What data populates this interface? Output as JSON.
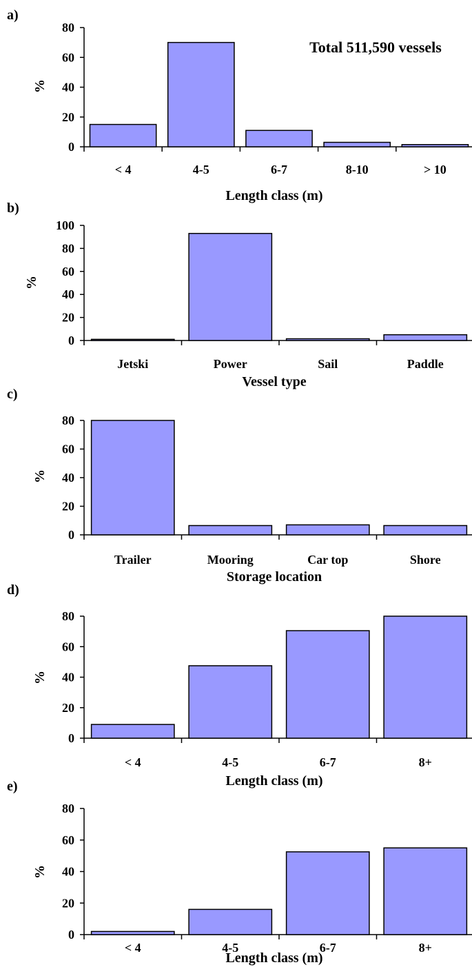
{
  "colors": {
    "bar": "#9999ff",
    "stroke": "#000000"
  },
  "chart_data": [
    {
      "type": "bar",
      "panel": "a)",
      "categories": [
        "< 4",
        "4-5",
        "6-7",
        "8-10",
        "> 10"
      ],
      "values": [
        15,
        70,
        11,
        3,
        1.5
      ],
      "xlabel": "Length class (m)",
      "ylabel": "%",
      "ylim": [
        0,
        80
      ],
      "yticks": [
        0,
        20,
        40,
        60,
        80
      ],
      "annotation": "Total 511,590 vessels"
    },
    {
      "type": "bar",
      "panel": "b)",
      "categories": [
        "Jetski",
        "Power",
        "Sail",
        "Paddle"
      ],
      "values": [
        1,
        93,
        1.5,
        5
      ],
      "xlabel": "Vessel type",
      "ylabel": "%",
      "ylim": [
        0,
        100
      ],
      "yticks": [
        0,
        20,
        40,
        60,
        80,
        100
      ]
    },
    {
      "type": "bar",
      "panel": "c)",
      "categories": [
        "Trailer",
        "Mooring",
        "Car top",
        "Shore"
      ],
      "values": [
        80,
        6.5,
        7,
        6.5
      ],
      "xlabel": "Storage location",
      "ylabel": "%",
      "ylim": [
        0,
        80
      ],
      "yticks": [
        0,
        20,
        40,
        60,
        80
      ]
    },
    {
      "type": "bar",
      "panel": "d)",
      "categories": [
        "< 4",
        "4-5",
        "6-7",
        "8+"
      ],
      "values": [
        9,
        47.5,
        70.5,
        80
      ],
      "xlabel": "Length class (m)",
      "ylabel": "%",
      "ylim": [
        0,
        80
      ],
      "yticks": [
        0,
        20,
        40,
        60,
        80
      ]
    },
    {
      "type": "bar",
      "panel": "e)",
      "categories": [
        "< 4",
        "4-5",
        "6-7",
        "8+"
      ],
      "values": [
        2,
        16,
        52.5,
        55
      ],
      "xlabel": "Length class (m)",
      "ylabel": "%",
      "ylim": [
        0,
        80
      ],
      "yticks": [
        0,
        20,
        40,
        60,
        80
      ]
    }
  ]
}
